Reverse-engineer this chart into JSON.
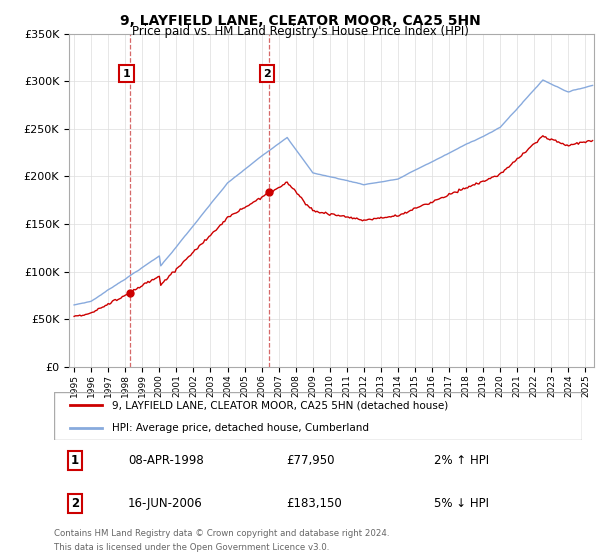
{
  "title": "9, LAYFIELD LANE, CLEATOR MOOR, CA25 5HN",
  "subtitle": "Price paid vs. HM Land Registry's House Price Index (HPI)",
  "ylabel_ticks": [
    "£0",
    "£50K",
    "£100K",
    "£150K",
    "£200K",
    "£250K",
    "£300K",
    "£350K"
  ],
  "ylim": [
    0,
    350000
  ],
  "xlim_start": 1994.7,
  "xlim_end": 2025.5,
  "sale1_year": 1998.27,
  "sale1_price": 77950,
  "sale1_label": "1",
  "sale1_date": "08-APR-1998",
  "sale1_amount": "£77,950",
  "sale1_hpi": "2% ↑ HPI",
  "sale2_year": 2006.46,
  "sale2_price": 183150,
  "sale2_label": "2",
  "sale2_date": "16-JUN-2006",
  "sale2_amount": "£183,150",
  "sale2_hpi": "5% ↓ HPI",
  "line_color_property": "#cc0000",
  "line_color_hpi": "#88aadd",
  "legend_property": "9, LAYFIELD LANE, CLEATOR MOOR, CA25 5HN (detached house)",
  "legend_hpi": "HPI: Average price, detached house, Cumberland",
  "footer1": "Contains HM Land Registry data © Crown copyright and database right 2024.",
  "footer2": "This data is licensed under the Open Government Licence v3.0.",
  "background_color": "#ffffff",
  "plot_bg_color": "#ffffff",
  "grid_color": "#dddddd"
}
